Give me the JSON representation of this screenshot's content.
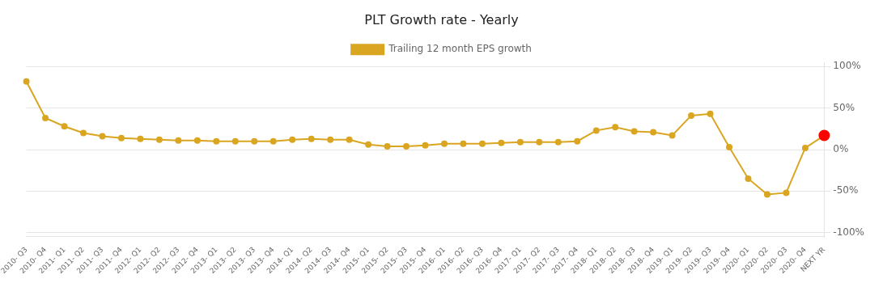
{
  "chart_data": {
    "type": "line",
    "title": "PLT Growth rate - Yearly",
    "categories": [
      "2010- Q3",
      "2010- Q4",
      "2011- Q1",
      "2011- Q2",
      "2011- Q3",
      "2011- Q4",
      "2012- Q1",
      "2012- Q2",
      "2012- Q3",
      "2012- Q4",
      "2013- Q1",
      "2013- Q2",
      "2013- Q3",
      "2013- Q4",
      "2014- Q1",
      "2014- Q2",
      "2014- Q3",
      "2014- Q4",
      "2015- Q1",
      "2015- Q2",
      "2015- Q3",
      "2015- Q4",
      "2016- Q1",
      "2016- Q2",
      "2016- Q3",
      "2016- Q4",
      "2017- Q1",
      "2017- Q2",
      "2017- Q3",
      "2017- Q4",
      "2018- Q1",
      "2018- Q2",
      "2018- Q3",
      "2018- Q4",
      "2019- Q1",
      "2019- Q2",
      "2019- Q3",
      "2019- Q4",
      "2020- Q1",
      "2020- Q2",
      "2020- Q3",
      "2020- Q4",
      "NEXT YR"
    ],
    "series": [
      {
        "name": "Trailing 12 month EPS growth",
        "color": "#DAA520",
        "colors": [
          "#DAA520",
          "#DAA520",
          "#DAA520",
          "#DAA520",
          "#DAA520",
          "#DAA520",
          "#DAA520",
          "#DAA520",
          "#DAA520",
          "#DAA520",
          "#DAA520",
          "#DAA520",
          "#DAA520",
          "#DAA520",
          "#DAA520",
          "#DAA520",
          "#DAA520",
          "#DAA520",
          "#DAA520",
          "#DAA520",
          "#DAA520",
          "#DAA520",
          "#DAA520",
          "#DAA520",
          "#DAA520",
          "#DAA520",
          "#DAA520",
          "#DAA520",
          "#DAA520",
          "#DAA520",
          "#DAA520",
          "#DAA520",
          "#DAA520",
          "#DAA520",
          "#DAA520",
          "#DAA520",
          "#DAA520",
          "#DAA520",
          "#DAA520",
          "#DAA520",
          "#DAA520",
          "#DAA520",
          "#FF0000"
        ],
        "marker": "circle",
        "values": [
          0.82,
          0.38,
          0.28,
          0.2,
          0.16,
          0.14,
          0.13,
          0.12,
          0.11,
          0.11,
          0.1,
          0.1,
          0.1,
          0.1,
          0.12,
          0.13,
          0.12,
          0.12,
          0.06,
          0.04,
          0.04,
          0.05,
          0.07,
          0.07,
          0.07,
          0.08,
          0.09,
          0.09,
          0.09,
          0.1,
          0.23,
          0.27,
          0.22,
          0.21,
          0.17,
          0.41,
          0.43,
          0.03,
          -0.35,
          -0.54,
          -0.52,
          0.02,
          0.17
        ]
      }
    ],
    "ylim": [
      -1.05,
      1.05
    ],
    "yticks": [
      {
        "value": -1.0,
        "label": "-100%"
      },
      {
        "value": -0.5,
        "label": "-50%"
      },
      {
        "value": 0.0,
        "label": "0%"
      },
      {
        "value": 0.5,
        "label": "50%"
      },
      {
        "value": 1.0,
        "label": "100%"
      }
    ],
    "grid": true,
    "legend": "top"
  }
}
